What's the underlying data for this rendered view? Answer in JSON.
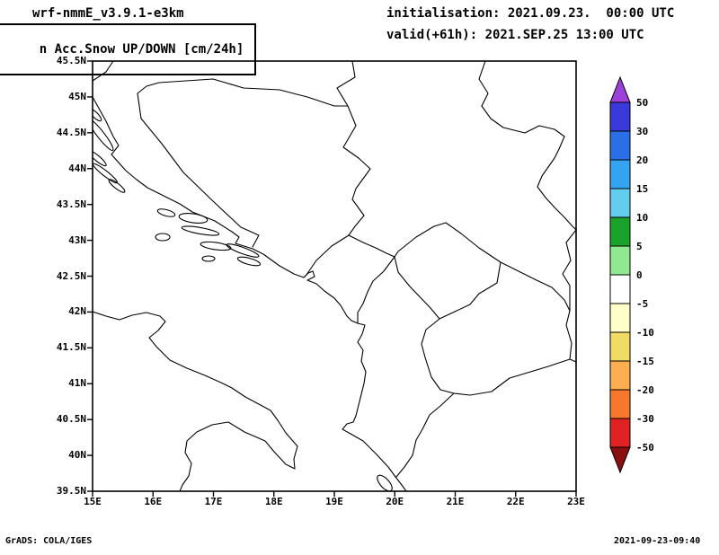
{
  "header": {
    "model": "wrf-nmmE_v3.9.1-e3km",
    "init_label": "initialisation: 2021.09.23.  00:00 UTC",
    "product": "n Acc.Snow UP/DOWN [cm/24h]",
    "valid_label": "valid(+61h): 2021.SEP.25 13:00 UTC"
  },
  "map": {
    "y_ticks": [
      "45.5N",
      "45N",
      "44.5N",
      "44N",
      "43.5N",
      "43N",
      "42.5N",
      "42N",
      "41.5N",
      "41N",
      "40.5N",
      "40N",
      "39.5N"
    ],
    "x_ticks": [
      "15E",
      "16E",
      "17E",
      "18E",
      "19E",
      "20E",
      "21E",
      "22E",
      "23E"
    ]
  },
  "colorbar": {
    "labels": [
      "50",
      "30",
      "20",
      "15",
      "10",
      "5",
      "0",
      "-5",
      "-10",
      "-15",
      "-20",
      "-30",
      "-50"
    ],
    "segment_colors": [
      "#3a3ada",
      "#2a6fe8",
      "#33a3f2",
      "#63cdf0",
      "#1aa32a",
      "#90e890",
      "#ffffff",
      "#ffffc8",
      "#f0dc64",
      "#fcae50",
      "#f8772c",
      "#e02222"
    ],
    "top_arrow_color": "#9b40d8",
    "bottom_arrow_color": "#8a0f0f"
  },
  "footer": {
    "left": "GrADS: COLA/IGES",
    "right": "2021-09-23-09:40"
  }
}
